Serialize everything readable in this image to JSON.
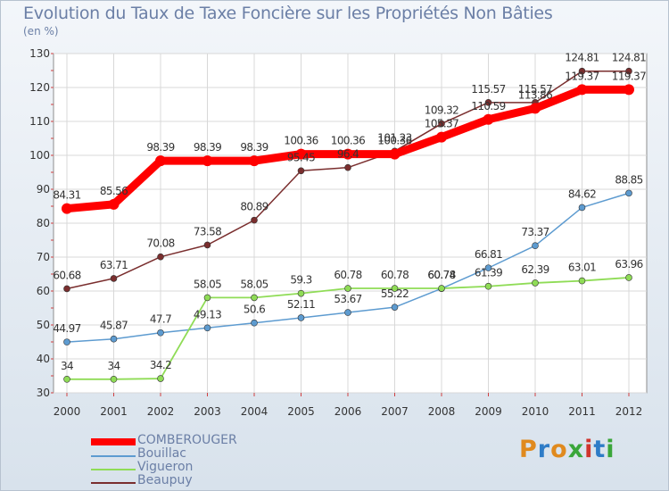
{
  "title": "Evolution du Taux de Taxe Foncière sur les Propriétés Non Bâties",
  "unit_label": "(en %)",
  "logo": {
    "text": "Proxiti",
    "colors": [
      "#e08a1e",
      "#2e7cc7",
      "#e08a1e",
      "#3aa63a",
      "#d0342c",
      "#2e7cc7",
      "#3aa63a"
    ]
  },
  "chart_data": {
    "type": "line",
    "title": "Evolution du Taux de Taxe Foncière sur les Propriétés Non Bâties",
    "ylabel": "(en %)",
    "xlabel": "",
    "x": [
      "2000",
      "2001",
      "2002",
      "2003",
      "2004",
      "2005",
      "2006",
      "2007",
      "2008",
      "2009",
      "2010",
      "2011",
      "2012"
    ],
    "ylim": [
      30,
      130
    ],
    "yticks": [
      30,
      40,
      50,
      60,
      70,
      80,
      90,
      100,
      110,
      120,
      130
    ],
    "grid": true,
    "legend_position": "bottom-left",
    "series": [
      {
        "name": "COMBEROUGER",
        "color": "#ff0000",
        "values": [
          84.31,
          85.56,
          98.39,
          98.39,
          98.39,
          100.36,
          100.36,
          100.36,
          105.37,
          110.59,
          113.86,
          119.37,
          119.37
        ]
      },
      {
        "name": "Bouillac",
        "color": "#5d9bd0",
        "values": [
          44.97,
          45.87,
          47.7,
          49.13,
          50.6,
          52.11,
          53.67,
          55.22,
          60.74,
          66.81,
          73.37,
          84.62,
          88.85
        ]
      },
      {
        "name": "Vigueron",
        "color": "#8fdc56",
        "values": [
          34,
          34,
          34.2,
          58.05,
          58.05,
          59.3,
          60.78,
          60.78,
          60.78,
          61.39,
          62.39,
          63.01,
          63.96
        ]
      },
      {
        "name": "Beaupuy",
        "color": "#7a2e2e",
        "values": [
          60.68,
          63.71,
          70.08,
          73.58,
          80.89,
          95.45,
          96.4,
          101.23,
          109.32,
          115.57,
          115.57,
          124.81,
          124.81
        ]
      }
    ],
    "point_labels": {
      "COMBEROUGER": [
        "84.31",
        "85.56",
        "98.39",
        "98.39",
        "98.39",
        "100.36",
        "100.36",
        "100.36",
        "105.37",
        "110.59",
        "113.86",
        "119.37",
        "119.37"
      ],
      "Bouillac": [
        "44.97",
        "45.87",
        "47.7",
        "49.13",
        "50.6",
        "52.11",
        "53.67",
        "55.22",
        "60.74",
        "66.81",
        "73.37",
        "84.62",
        "88.85"
      ],
      "Vigueron": [
        "34",
        "34",
        "34.2",
        "58.05",
        "58.05",
        "59.3",
        "60.78",
        "60.78",
        "60.78",
        "61.39",
        "62.39",
        "63.01",
        "63.96"
      ],
      "Beaupuy": [
        "60.68",
        "63.71",
        "70.08",
        "73.58",
        "80.89",
        "95.45",
        "96.4",
        "101.23",
        "109.32",
        "115.57",
        "115.57",
        "124.81",
        "124.81"
      ]
    }
  }
}
